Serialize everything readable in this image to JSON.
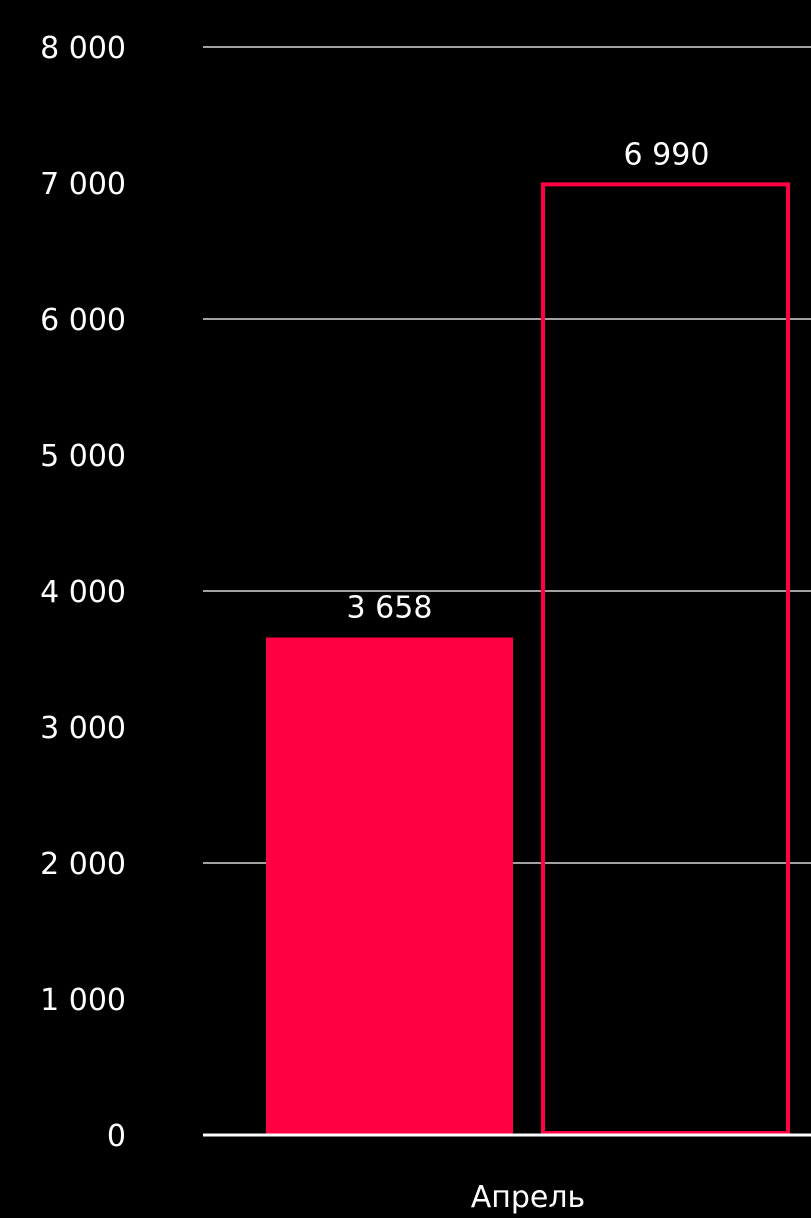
{
  "chart_data": {
    "type": "bar",
    "categories": [
      "Апрель"
    ],
    "series": [
      {
        "values": [
          3658
        ],
        "value_labels": [
          "3 658"
        ],
        "style": "filled",
        "color": "#ff0043"
      },
      {
        "values": [
          6990
        ],
        "value_labels": [
          "6 990"
        ],
        "style": "outline",
        "color": "#ff0043"
      }
    ],
    "y_ticks": [
      {
        "value": 0,
        "label": "0"
      },
      {
        "value": 1000,
        "label": "1 000"
      },
      {
        "value": 2000,
        "label": "2 000"
      },
      {
        "value": 3000,
        "label": "3 000"
      },
      {
        "value": 4000,
        "label": "4 000"
      },
      {
        "value": 5000,
        "label": "5 000"
      },
      {
        "value": 6000,
        "label": "6 000"
      },
      {
        "value": 7000,
        "label": "7 000"
      },
      {
        "value": 8000,
        "label": "8 000"
      }
    ],
    "gridline_values": [
      2000,
      4000,
      6000,
      8000
    ],
    "ylim": [
      0,
      8000
    ],
    "title": "",
    "xlabel": "",
    "ylabel": "",
    "grid": true,
    "legend": "none",
    "background_color": "#000000",
    "text_color": "#ffffff"
  }
}
